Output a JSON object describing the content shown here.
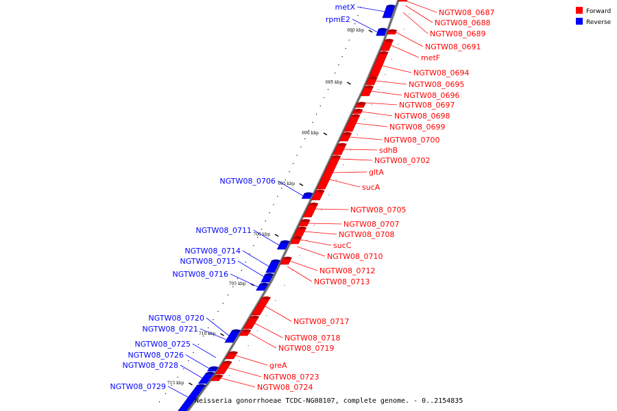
{
  "legend": {
    "forward_label": "Forward",
    "reverse_label": "Reverse",
    "forward_color": "#ff0000",
    "reverse_color": "#0000ff"
  },
  "caption": "Neisseria gonorrhoeae TCDC-NG08107, complete genome. - 0..2154835",
  "kbp_ticks": [
    "680 kbp",
    "685 kbp",
    "690 kbp",
    "695 kbp",
    "700 kbp",
    "705 kbp",
    "710 kbp",
    "715 kbp"
  ],
  "forward_labels": [
    "NGTW08_0687",
    "NGTW08_0688",
    "NGTW08_0689",
    "NGTW08_0691",
    "metF",
    "NGTW08_0694",
    "NGTW08_0695",
    "NGTW08_0696",
    "NGTW08_0697",
    "NGTW08_0698",
    "NGTW08_0699",
    "NGTW08_0700",
    "sdhB",
    "NGTW08_0702",
    "gltA",
    "sucA",
    "NGTW08_0705",
    "NGTW08_0707",
    "NGTW08_0708",
    "sucC",
    "NGTW08_0710",
    "NGTW08_0712",
    "NGTW08_0713",
    "NGTW08_0717",
    "NGTW08_0718",
    "NGTW08_0719",
    "greA",
    "NGTW08_0723",
    "NGTW08_0724"
  ],
  "reverse_labels": [
    "metX",
    "rpmE2",
    "NGTW08_0706",
    "NGTW08_0711",
    "NGTW08_0714",
    "NGTW08_0715",
    "NGTW08_0716",
    "NGTW08_0720",
    "NGTW08_0721",
    "NGTW08_0725",
    "NGTW08_0726",
    "NGTW08_0728",
    "NGTW08_0729"
  ]
}
